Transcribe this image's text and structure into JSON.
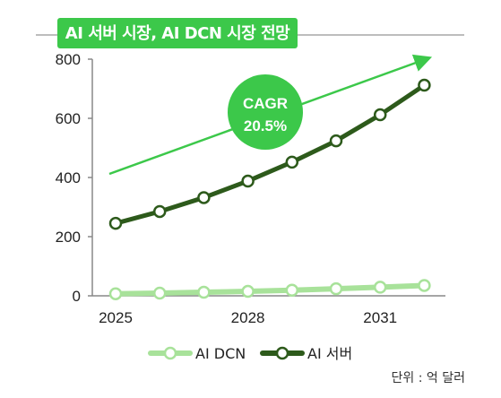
{
  "chart_data": {
    "type": "line",
    "title": "AI 서버 시장, AI DCN 시장 전망",
    "unit": "단위 : 억 달러",
    "x": [
      2025,
      2026,
      2027,
      2028,
      2029,
      2030,
      2031,
      2032
    ],
    "xticks": [
      "2025",
      "2028",
      "2031"
    ],
    "ylim": [
      0,
      800
    ],
    "yticks": [
      0,
      200,
      400,
      600,
      800
    ],
    "series": [
      {
        "name": "AI DCN",
        "color": "#a8e29a",
        "values": [
          7,
          9,
          12,
          15,
          19,
          24,
          29,
          35
        ]
      },
      {
        "name": "AI 서버",
        "color": "#2d5a1b",
        "values": [
          245,
          285,
          332,
          388,
          452,
          524,
          612,
          712
        ]
      }
    ],
    "annotation": {
      "label_line1": "CAGR",
      "label_line2": "20.5%",
      "color": "#3cc84a"
    },
    "legend_position": "bottom-center"
  }
}
